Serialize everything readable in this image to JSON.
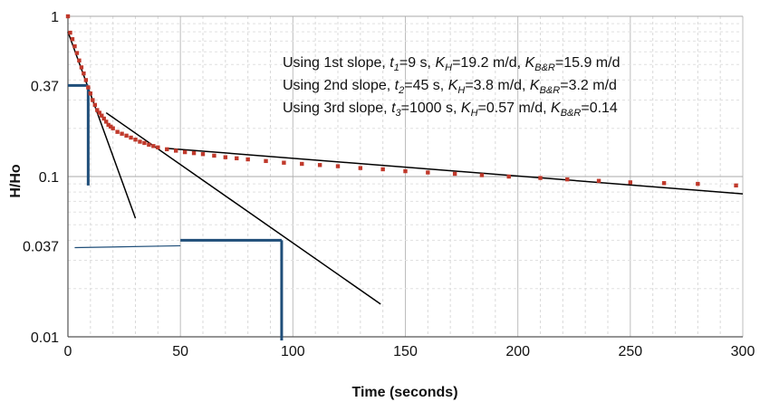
{
  "chart_data": {
    "type": "scatter",
    "xlabel": "Time (seconds)",
    "ylabel": "H/Ho",
    "xlim": [
      0,
      300
    ],
    "ylim": [
      0.01,
      1
    ],
    "yscale": "log",
    "grid": true,
    "x_ticks": [
      0,
      50,
      100,
      150,
      200,
      250,
      300
    ],
    "x_tick_labels": [
      "0",
      "50",
      "100",
      "150",
      "200",
      "250",
      "300"
    ],
    "y_ticks": [
      0.01,
      0.037,
      0.1,
      0.37,
      1
    ],
    "y_tick_labels": [
      "0.01",
      "0.037",
      "0.1",
      "0.37",
      "1"
    ],
    "colors": {
      "data": "#c0392b",
      "fit": "#000000",
      "marker": "#1f4e79"
    },
    "series": [
      {
        "type": "scatter",
        "x": [
          0,
          1,
          2,
          3,
          4,
          5,
          6,
          7,
          8,
          9,
          10,
          11,
          12,
          13,
          14,
          15,
          16,
          17,
          18,
          19,
          20,
          22,
          24,
          26,
          28,
          30,
          32,
          34,
          36,
          38,
          40,
          44,
          48,
          52,
          56,
          60,
          65,
          70,
          75,
          80,
          88,
          96,
          104,
          112,
          120,
          130,
          140,
          150,
          160,
          172,
          184,
          196,
          210,
          222,
          236,
          250,
          265,
          280,
          297
        ],
        "values": [
          1.0,
          0.79,
          0.72,
          0.65,
          0.59,
          0.53,
          0.48,
          0.44,
          0.4,
          0.36,
          0.33,
          0.3,
          0.28,
          0.26,
          0.25,
          0.24,
          0.23,
          0.22,
          0.21,
          0.205,
          0.2,
          0.19,
          0.185,
          0.18,
          0.175,
          0.17,
          0.165,
          0.162,
          0.158,
          0.155,
          0.152,
          0.148,
          0.145,
          0.142,
          0.14,
          0.138,
          0.135,
          0.132,
          0.13,
          0.128,
          0.125,
          0.122,
          0.12,
          0.118,
          0.116,
          0.113,
          0.111,
          0.108,
          0.106,
          0.104,
          0.102,
          0.1,
          0.098,
          0.096,
          0.094,
          0.092,
          0.091,
          0.09,
          0.088
        ]
      }
    ],
    "fit_lines": [
      {
        "x": [
          0,
          30
        ],
        "values": [
          0.8,
          0.055
        ]
      },
      {
        "x": [
          17,
          139
        ],
        "values": [
          0.25,
          0.016
        ]
      },
      {
        "x": [
          44,
          300
        ],
        "values": [
          0.15,
          0.078
        ]
      }
    ],
    "marker_lines": [
      {
        "x": [
          0,
          9
        ],
        "values": [
          0.37,
          0.37
        ]
      },
      {
        "x": [
          9,
          9
        ],
        "values": [
          0.37,
          0.088
        ]
      },
      {
        "x": [
          3,
          50
        ],
        "values": [
          0.036,
          0.037
        ]
      },
      {
        "x": [
          50,
          95
        ],
        "values": [
          0.04,
          0.04
        ]
      },
      {
        "x": [
          95,
          95
        ],
        "values": [
          0.04,
          0.0095
        ]
      }
    ],
    "annotations": [
      [
        {
          "t": "Using 1st slope, "
        },
        {
          "t": "t",
          "i": true
        },
        {
          "t": "1",
          "i": true,
          "sub": true
        },
        {
          "t": "=9 s, "
        },
        {
          "t": "K",
          "i": true
        },
        {
          "t": "H",
          "i": true,
          "sub": true
        },
        {
          "t": "=19.2 m/d, "
        },
        {
          "t": "K",
          "i": true
        },
        {
          "t": "B&R",
          "i": true,
          "sub": true
        },
        {
          "t": "=15.9 m/d"
        }
      ],
      [
        {
          "t": "Using 2nd slope, "
        },
        {
          "t": "t",
          "i": true
        },
        {
          "t": "2",
          "i": true,
          "sub": true
        },
        {
          "t": "=45 s, "
        },
        {
          "t": "K",
          "i": true
        },
        {
          "t": "H",
          "i": true,
          "sub": true
        },
        {
          "t": "=3.8 m/d, "
        },
        {
          "t": "K",
          "i": true
        },
        {
          "t": "B&R",
          "i": true,
          "sub": true
        },
        {
          "t": "=3.2 m/d"
        }
      ],
      [
        {
          "t": "Using 3rd slope, "
        },
        {
          "t": "t",
          "i": true
        },
        {
          "t": "3",
          "i": true,
          "sub": true
        },
        {
          "t": "=1000 s, "
        },
        {
          "t": "K",
          "i": true
        },
        {
          "t": "H",
          "i": true,
          "sub": true
        },
        {
          "t": "=0.57 m/d, "
        },
        {
          "t": "K",
          "i": true
        },
        {
          "t": "B&R",
          "i": true,
          "sub": true
        },
        {
          "t": "=0.14"
        }
      ]
    ]
  }
}
